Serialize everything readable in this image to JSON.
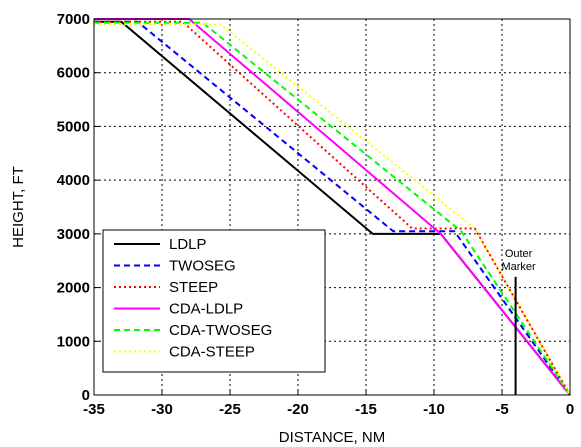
{
  "chart_data": {
    "type": "line",
    "xlabel": "DISTANCE, NM",
    "ylabel": "HEIGHT, FT",
    "xlim": [
      -35,
      0
    ],
    "ylim": [
      0,
      7000
    ],
    "xticks": [
      -35,
      -30,
      -25,
      -20,
      -15,
      -10,
      -5,
      0
    ],
    "yticks": [
      0,
      1000,
      2000,
      3000,
      4000,
      5000,
      6000,
      7000
    ],
    "grid": true,
    "legend_position": "bottom-left",
    "series": [
      {
        "name": "LDLP",
        "color": "#000000",
        "dash": "solid",
        "x": [
          -35,
          -33.0,
          -14.5,
          -9.5,
          0
        ],
        "y": [
          6950,
          6950,
          3000,
          3000,
          0
        ]
      },
      {
        "name": "TWOSEG",
        "color": "#0000ff",
        "dash": "dashed",
        "x": [
          -35,
          -31.8,
          -13.0,
          -8.5,
          0
        ],
        "y": [
          6950,
          6950,
          3050,
          3050,
          0
        ]
      },
      {
        "name": "STEEP",
        "color": "#ff0000",
        "dash": "dotted",
        "x": [
          -35,
          -28.5,
          -11.6,
          -7.0,
          0
        ],
        "y": [
          6950,
          6950,
          3100,
          3100,
          0
        ]
      },
      {
        "name": "CDA-LDLP",
        "color": "#ff00ff",
        "dash": "solid",
        "x": [
          -35,
          -28.0,
          -9.5,
          0
        ],
        "y": [
          7000,
          7000,
          3000,
          0
        ]
      },
      {
        "name": "CDA-TWOSEG",
        "color": "#00ff00",
        "dash": "dashed",
        "x": [
          -35,
          -27.0,
          -8.0,
          0
        ],
        "y": [
          6930,
          6930,
          3050,
          0
        ]
      },
      {
        "name": "CDA-STEEP",
        "color": "#ffff00",
        "dash": "dotted",
        "x": [
          -35,
          -25.7,
          -7.0,
          0
        ],
        "y": [
          6900,
          6900,
          3100,
          0
        ]
      }
    ],
    "annotation": {
      "lines": [
        "Outer",
        "Marker"
      ],
      "x": -4,
      "y_top": 2200
    }
  }
}
